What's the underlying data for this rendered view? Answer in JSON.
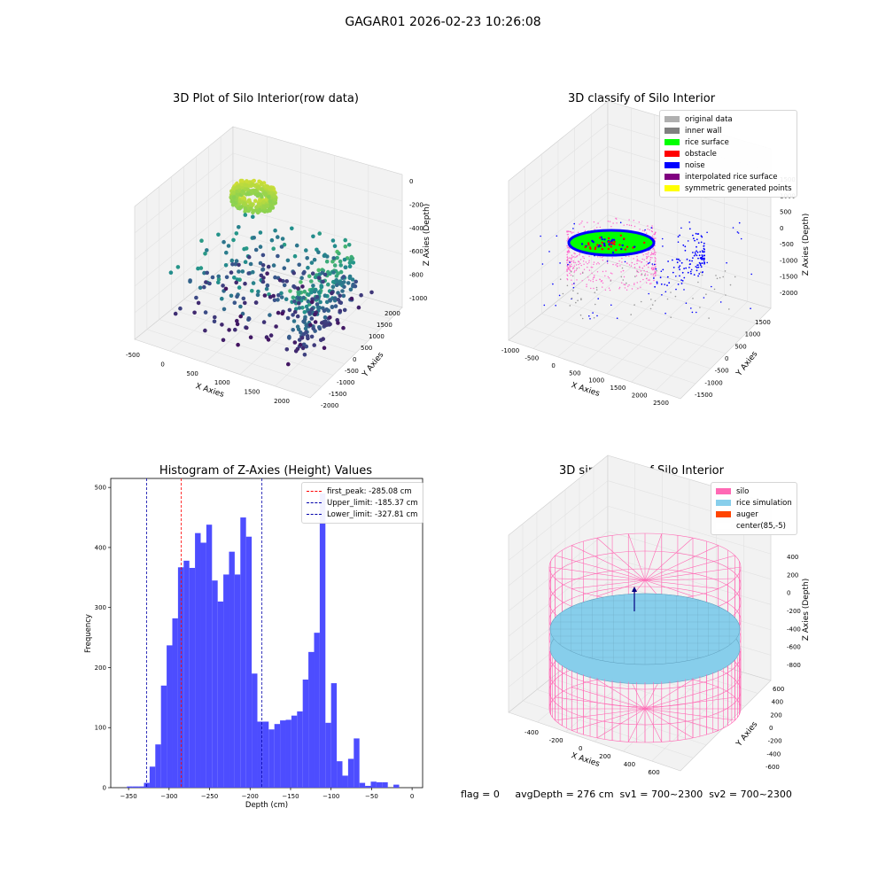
{
  "suptitle": "GAGAR01 2026-02-23 10:26:08",
  "status_line": "flag = 0     avgDepth = 276 cm  sv1 = 700~2300  sv2 = 700~2300",
  "chart_data": [
    {
      "type": "scatter",
      "title": "3D Plot of Silo Interior(row data)",
      "xlabel": "X Axies",
      "ylabel": "Y Axies",
      "zlabel": "Z Axies (Depth)",
      "xticks": [
        "-500",
        "0",
        "500",
        "1000",
        "1500",
        "2000"
      ],
      "yticks": [
        "-2000",
        "-1500",
        "-1000",
        "-500",
        "0",
        "500",
        "1000",
        "1500",
        "2000"
      ],
      "zticks": [
        "-1000",
        "-800",
        "-600",
        "-400",
        "-200",
        "0"
      ],
      "xlim": [
        -600,
        2300
      ],
      "ylim": [
        -2100,
        2100
      ],
      "zlim": [
        -1050,
        50
      ],
      "colormap": "viridis (by depth)"
    },
    {
      "type": "scatter",
      "title": "3D classify of Silo Interior",
      "xlabel": "X Axies",
      "ylabel": "Y Axies",
      "zlabel": "Z Axies (Depth)",
      "xticks": [
        "-1000",
        "-500",
        "0",
        "500",
        "1000",
        "1500",
        "2000",
        "2500"
      ],
      "yticks": [
        "-1500",
        "-1000",
        "-500",
        "0",
        "500",
        "1000",
        "1500"
      ],
      "zticks": [
        "-2000",
        "-1500",
        "-1000",
        "-500",
        "0",
        "500",
        "1000",
        "1500"
      ],
      "xlim": [
        -1100,
        2700
      ],
      "ylim": [
        -1700,
        1700
      ],
      "zlim": [
        -2100,
        1600
      ],
      "legend": [
        {
          "label": "original data",
          "color": "#b0b0b0"
        },
        {
          "label": "inner wall",
          "color": "#808080"
        },
        {
          "label": "rice surface",
          "color": "#00ff00"
        },
        {
          "label": "obstacle",
          "color": "#ff0000"
        },
        {
          "label": "noise",
          "color": "#0000ff"
        },
        {
          "label": "interpolated rice surface",
          "color": "#800080"
        },
        {
          "label": "symmetric generated points",
          "color": "#ffff00"
        }
      ]
    },
    {
      "type": "bar",
      "title": "Histogram of Z-Axies (Height) Values",
      "xlabel": "Depth (cm)",
      "ylabel": "Frequency",
      "xlim": [
        -372,
        13
      ],
      "ylim": [
        0,
        515
      ],
      "xticks": [
        -350,
        -300,
        -250,
        -200,
        -150,
        -100,
        -50,
        0
      ],
      "yticks": [
        0,
        100,
        200,
        300,
        400,
        500
      ],
      "bin_width": 7,
      "bin_edges_start": -352,
      "values": [
        2,
        2,
        2,
        8,
        35,
        72,
        170,
        237,
        282,
        367,
        378,
        366,
        424,
        408,
        438,
        345,
        310,
        355,
        393,
        355,
        450,
        418,
        190,
        110,
        110,
        97,
        106,
        112,
        113,
        120,
        127,
        180,
        226,
        258,
        490,
        108,
        174,
        44,
        20,
        48,
        82,
        8,
        3,
        10,
        9,
        9,
        0,
        5
      ],
      "bar_color": "#4d4dff",
      "lines": [
        {
          "label": "first_peak: -285.08 cm",
          "x": -285.08,
          "color": "#ff0000"
        },
        {
          "label": "Upper_limit: -185.37 cm",
          "x": -185.37,
          "color": "#0000aa"
        },
        {
          "label": "Lower_limit: -327.81 cm",
          "x": -327.81,
          "color": "#0000aa"
        }
      ],
      "legend_position": "top-right"
    },
    {
      "type": "scatter",
      "title": "3D simulation of Silo Interior",
      "xlabel": "X Axies",
      "ylabel": "Y Axies",
      "zlabel": "Z Axies (Depth)",
      "xticks": [
        "-400",
        "-200",
        "0",
        "200",
        "400",
        "600"
      ],
      "yticks": [
        "-600",
        "-400",
        "-200",
        "0",
        "200",
        "400",
        "600"
      ],
      "zticks": [
        "-800",
        "-600",
        "-400",
        "-200",
        "0",
        "200",
        "400"
      ],
      "legend": [
        {
          "label": "silo",
          "color": "#ff69b4"
        },
        {
          "label": "rice simulation",
          "color": "#87ceeb"
        },
        {
          "label": "auger",
          "color": "#ff4500"
        },
        {
          "label": "center(85,-5)",
          "color": "#ffffff"
        }
      ]
    }
  ]
}
